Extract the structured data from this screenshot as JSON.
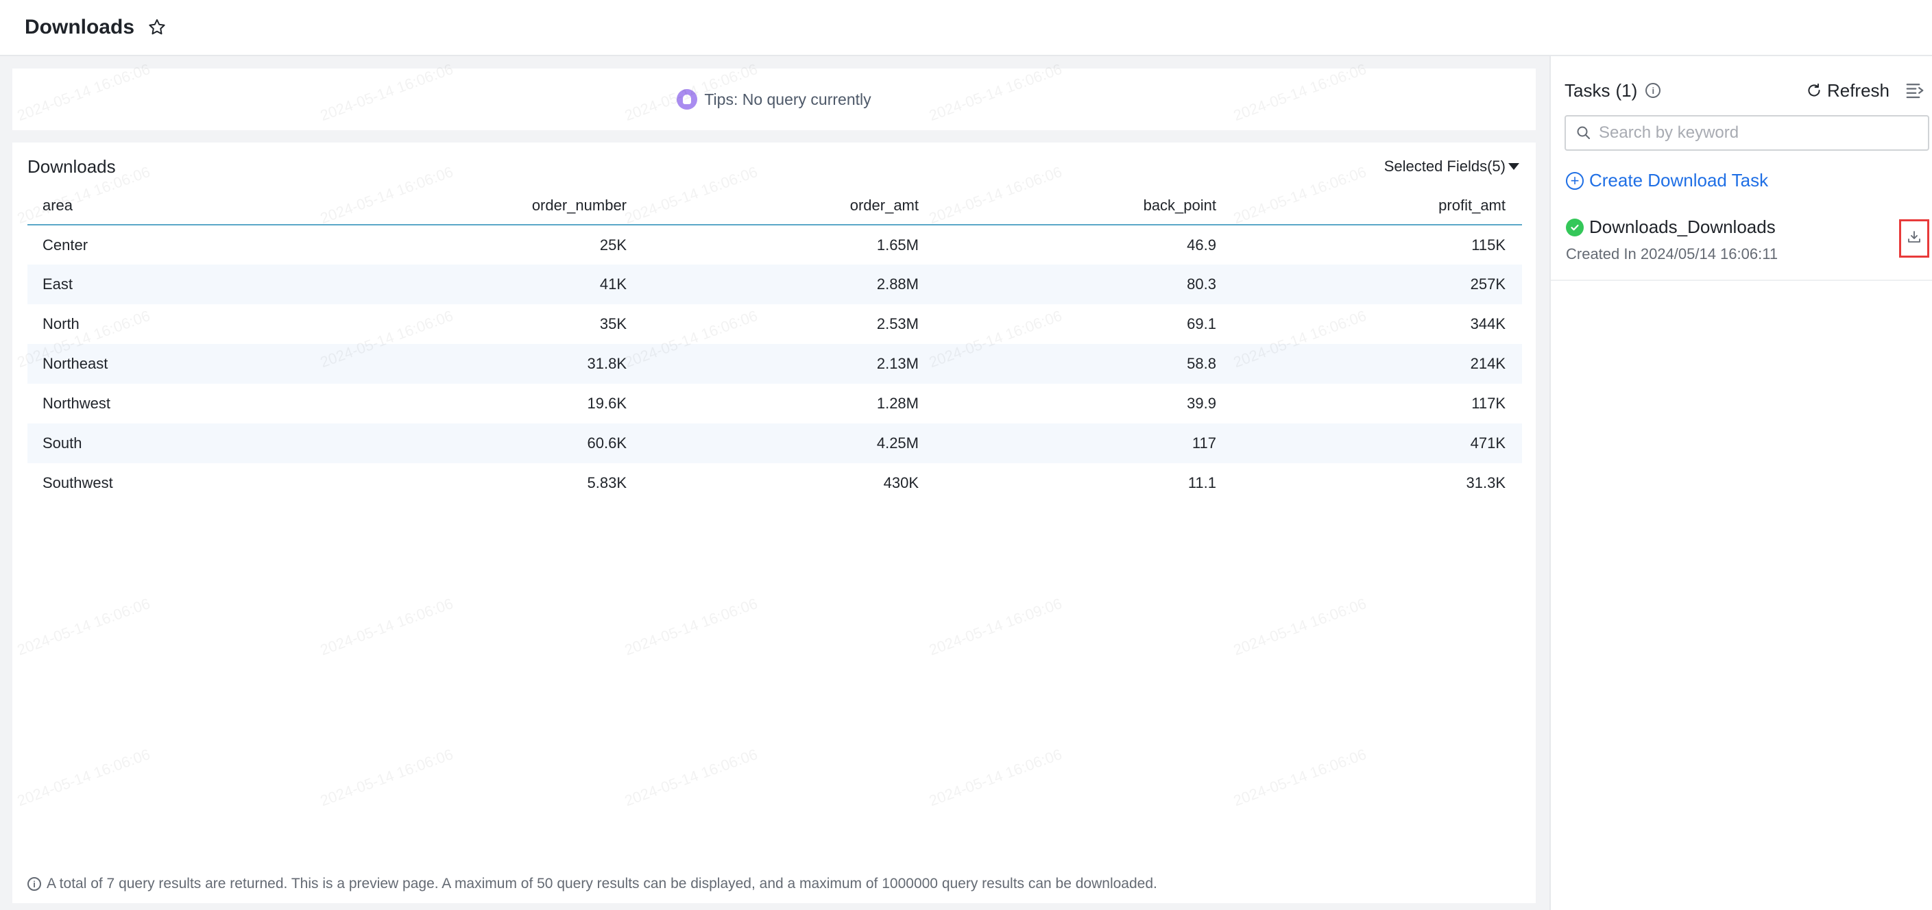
{
  "header": {
    "title": "Downloads"
  },
  "tips": {
    "text": "Tips: No query currently"
  },
  "table_card": {
    "title": "Downloads",
    "selected_fields_label": "Selected Fields(5)",
    "columns": [
      "area",
      "order_number",
      "order_amt",
      "back_point",
      "profit_amt"
    ],
    "rows": [
      {
        "area": "Center",
        "order_number": "25K",
        "order_amt": "1.65M",
        "back_point": "46.9",
        "profit_amt": "115K"
      },
      {
        "area": "East",
        "order_number": "41K",
        "order_amt": "2.88M",
        "back_point": "80.3",
        "profit_amt": "257K"
      },
      {
        "area": "North",
        "order_number": "35K",
        "order_amt": "2.53M",
        "back_point": "69.1",
        "profit_amt": "344K"
      },
      {
        "area": "Northeast",
        "order_number": "31.8K",
        "order_amt": "2.13M",
        "back_point": "58.8",
        "profit_amt": "214K"
      },
      {
        "area": "Northwest",
        "order_number": "19.6K",
        "order_amt": "1.28M",
        "back_point": "39.9",
        "profit_amt": "117K"
      },
      {
        "area": "South",
        "order_number": "60.6K",
        "order_amt": "4.25M",
        "back_point": "117",
        "profit_amt": "471K"
      },
      {
        "area": "Southwest",
        "order_number": "5.83K",
        "order_amt": "430K",
        "back_point": "11.1",
        "profit_amt": "31.3K"
      }
    ],
    "footer_note": "A total of 7 query results are returned. This is a preview page. A maximum of 50 query results can be displayed, and a maximum of 1000000 query results can be downloaded."
  },
  "watermark": {
    "text": "2024-05-14 16:06:06",
    "alt_text": "2024-05-14 16:09:06"
  },
  "tasks_panel": {
    "title": "Tasks",
    "count": "(1)",
    "refresh_label": "Refresh",
    "search_placeholder": "Search by keyword",
    "search_value": "",
    "create_label": "Create Download Task",
    "items": [
      {
        "name": "Downloads_Downloads",
        "created": "Created In 2024/05/14 16:06:11"
      }
    ]
  },
  "colors": {
    "accent": "#1f6fe5",
    "success": "#34c759",
    "highlight_border": "#e83a3a",
    "tips_icon": "#a98cf0"
  },
  "icons": {
    "favorite": "star-icon",
    "tips": "bulb-icon",
    "info": "info-icon",
    "refresh": "refresh-icon",
    "collapse": "collapse-panel-icon",
    "search": "search-icon",
    "create": "plus-circle-icon",
    "status": "check-circle-icon",
    "download": "download-icon"
  }
}
